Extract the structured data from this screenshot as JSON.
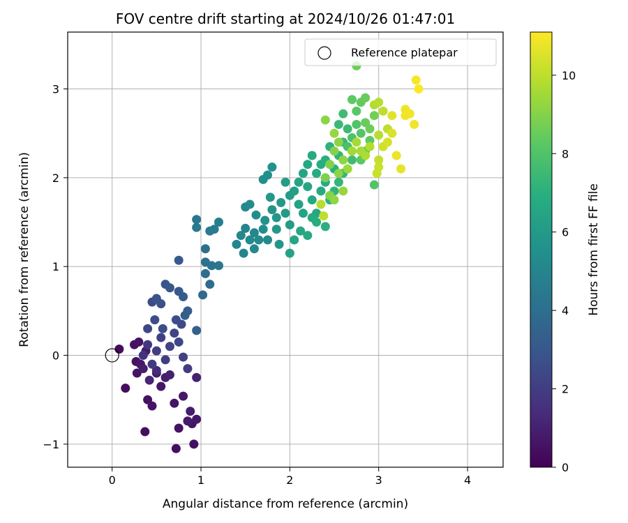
{
  "chart_data": {
    "type": "scatter",
    "title": "FOV centre drift starting at 2024/10/26 01:47:01",
    "xlabel": "Angular distance from reference (arcmin)",
    "ylabel": "Rotation from reference (arcmin)",
    "xlim": [
      -0.5,
      4.4
    ],
    "ylim": [
      -1.26,
      3.64
    ],
    "x_ticks": [
      0,
      1,
      2,
      3,
      4
    ],
    "y_ticks": [
      -1,
      0,
      1,
      2,
      3
    ],
    "x_tick_labels": [
      "0",
      "1",
      "2",
      "3",
      "4"
    ],
    "y_tick_labels": [
      "−1",
      "0",
      "1",
      "2",
      "3"
    ],
    "grid": true,
    "legend": {
      "location": "top-right",
      "entries": [
        "Reference platepar"
      ]
    },
    "reference_point": {
      "name": "Reference platepar",
      "x": 0,
      "y": 0
    },
    "colorbar": {
      "label": "Hours from first FF file",
      "colormap": "viridis",
      "range": [
        0,
        11.1
      ],
      "ticks": [
        0,
        2,
        4,
        6,
        8,
        10
      ],
      "tick_labels": [
        "0",
        "2",
        "4",
        "6",
        "8",
        "10"
      ]
    },
    "points_note": "approximate reading of the scatter; columns are [x arcmin, y arcmin, hours]",
    "points": [
      [
        0.08,
        0.07,
        0.3
      ],
      [
        0.15,
        -0.37,
        0.4
      ],
      [
        0.25,
        0.12,
        0.5
      ],
      [
        0.3,
        0.15,
        0.6
      ],
      [
        0.27,
        -0.07,
        0.5
      ],
      [
        0.32,
        -0.1,
        0.7
      ],
      [
        0.28,
        -0.2,
        0.6
      ],
      [
        0.38,
        0.05,
        0.8
      ],
      [
        0.35,
        -0.15,
        0.9
      ],
      [
        0.4,
        -0.5,
        0.5
      ],
      [
        0.45,
        -0.57,
        0.6
      ],
      [
        0.37,
        -0.86,
        0.4
      ],
      [
        0.5,
        -0.2,
        0.8
      ],
      [
        0.55,
        -0.35,
        0.7
      ],
      [
        0.6,
        -0.25,
        0.9
      ],
      [
        0.65,
        -0.22,
        1.0
      ],
      [
        0.7,
        -0.54,
        0.6
      ],
      [
        0.75,
        -0.82,
        0.5
      ],
      [
        0.72,
        -1.05,
        0.4
      ],
      [
        0.8,
        -0.46,
        0.7
      ],
      [
        0.85,
        -0.74,
        0.8
      ],
      [
        0.88,
        -0.63,
        0.9
      ],
      [
        0.9,
        -0.77,
        0.6
      ],
      [
        0.95,
        -0.72,
        0.7
      ],
      [
        0.92,
        -1.0,
        0.5
      ],
      [
        0.95,
        -0.25,
        1.0
      ],
      [
        0.42,
        -0.28,
        1.2
      ],
      [
        0.5,
        -0.17,
        1.3
      ],
      [
        0.35,
        0.0,
        1.6
      ],
      [
        0.4,
        0.12,
        1.8
      ],
      [
        0.45,
        -0.1,
        1.9
      ],
      [
        0.5,
        0.05,
        2.0
      ],
      [
        0.55,
        0.2,
        2.1
      ],
      [
        0.6,
        -0.05,
        2.0
      ],
      [
        0.65,
        0.1,
        2.2
      ],
      [
        0.7,
        0.25,
        2.3
      ],
      [
        0.75,
        0.15,
        2.4
      ],
      [
        0.8,
        -0.02,
        2.1
      ],
      [
        0.85,
        -0.15,
        2.0
      ],
      [
        0.78,
        0.35,
        2.5
      ],
      [
        0.72,
        0.4,
        2.6
      ],
      [
        0.4,
        0.3,
        2.4
      ],
      [
        0.48,
        0.4,
        2.6
      ],
      [
        0.55,
        0.58,
        2.7
      ],
      [
        0.45,
        0.6,
        2.5
      ],
      [
        0.5,
        0.64,
        2.8
      ],
      [
        0.6,
        0.8,
        2.9
      ],
      [
        0.65,
        0.76,
        3.0
      ],
      [
        0.75,
        0.72,
        3.1
      ],
      [
        0.8,
        0.66,
        3.2
      ],
      [
        0.85,
        0.5,
        3.3
      ],
      [
        0.82,
        0.45,
        3.3
      ],
      [
        0.75,
        1.07,
        3.1
      ],
      [
        0.95,
        0.28,
        3.4
      ],
      [
        0.57,
        0.3,
        2.6
      ],
      [
        0.95,
        1.53,
        4.3
      ],
      [
        0.95,
        1.44,
        4.4
      ],
      [
        1.05,
        1.2,
        4.0
      ],
      [
        1.1,
        1.4,
        4.5
      ],
      [
        1.05,
        1.05,
        4.1
      ],
      [
        1.12,
        1.01,
        4.2
      ],
      [
        1.05,
        0.92,
        4.0
      ],
      [
        1.2,
        1.01,
        4.4
      ],
      [
        1.1,
        0.8,
        3.9
      ],
      [
        1.02,
        0.68,
        3.8
      ],
      [
        1.15,
        1.42,
        4.6
      ],
      [
        1.2,
        1.5,
        4.7
      ],
      [
        1.4,
        1.25,
        5.0
      ],
      [
        1.45,
        1.35,
        5.1
      ],
      [
        1.5,
        1.43,
        5.0
      ],
      [
        1.55,
        1.3,
        5.2
      ],
      [
        1.6,
        1.38,
        5.1
      ],
      [
        1.48,
        1.15,
        5.0
      ],
      [
        1.6,
        1.2,
        5.2
      ],
      [
        1.65,
        1.3,
        5.3
      ],
      [
        1.7,
        1.42,
        5.4
      ],
      [
        1.75,
        1.3,
        5.3
      ],
      [
        1.5,
        1.67,
        5.2
      ],
      [
        1.55,
        1.7,
        5.3
      ],
      [
        1.62,
        1.58,
        5.4
      ],
      [
        1.7,
        1.98,
        5.5
      ],
      [
        1.75,
        2.03,
        5.5
      ],
      [
        1.8,
        2.12,
        5.6
      ],
      [
        1.72,
        1.52,
        5.6
      ],
      [
        1.8,
        1.64,
        5.7
      ],
      [
        1.85,
        1.55,
        5.8
      ],
      [
        1.9,
        1.72,
        5.9
      ],
      [
        1.85,
        1.42,
        5.9
      ],
      [
        1.88,
        1.25,
        5.8
      ],
      [
        1.95,
        1.6,
        6.0
      ],
      [
        2.0,
        1.8,
        6.1
      ],
      [
        2.0,
        1.47,
        6.1
      ],
      [
        2.0,
        1.15,
        6.3
      ],
      [
        1.95,
        1.95,
        6.1
      ],
      [
        1.78,
        1.78,
        5.9
      ],
      [
        2.05,
        1.85,
        6.2
      ],
      [
        2.1,
        1.7,
        6.3
      ],
      [
        2.15,
        1.6,
        6.4
      ],
      [
        2.2,
        1.9,
        6.5
      ],
      [
        2.25,
        1.75,
        6.6
      ],
      [
        2.3,
        1.6,
        6.5
      ],
      [
        2.35,
        1.85,
        6.7
      ],
      [
        2.4,
        1.95,
        6.8
      ],
      [
        2.1,
        1.95,
        6.4
      ],
      [
        2.15,
        2.05,
        6.5
      ],
      [
        2.2,
        2.15,
        6.6
      ],
      [
        2.25,
        2.25,
        6.7
      ],
      [
        2.3,
        2.05,
        6.8
      ],
      [
        2.35,
        2.15,
        6.9
      ],
      [
        2.4,
        2.2,
        7.0
      ],
      [
        2.45,
        2.35,
        7.1
      ],
      [
        2.5,
        2.1,
        7.0
      ],
      [
        2.55,
        2.25,
        7.2
      ],
      [
        2.3,
        1.5,
        6.9
      ],
      [
        2.4,
        1.45,
        7.0
      ],
      [
        2.45,
        1.75,
        7.1
      ],
      [
        2.5,
        1.85,
        7.2
      ],
      [
        2.55,
        1.95,
        7.3
      ],
      [
        2.6,
        2.05,
        7.3
      ],
      [
        2.12,
        1.4,
        6.6
      ],
      [
        2.05,
        1.3,
        6.5
      ],
      [
        2.2,
        1.35,
        6.7
      ],
      [
        2.25,
        1.55,
        6.8
      ],
      [
        2.6,
        2.4,
        7.4
      ],
      [
        2.65,
        2.55,
        7.5
      ],
      [
        2.7,
        2.2,
        7.6
      ],
      [
        2.55,
        2.6,
        7.5
      ],
      [
        2.6,
        2.72,
        7.6
      ],
      [
        2.65,
        2.35,
        7.8
      ],
      [
        2.7,
        2.45,
        7.9
      ],
      [
        2.75,
        2.6,
        8.0
      ],
      [
        2.8,
        2.5,
        8.1
      ],
      [
        2.85,
        2.3,
        8.2
      ],
      [
        2.9,
        2.42,
        8.3
      ],
      [
        2.75,
        2.75,
        8.2
      ],
      [
        2.8,
        2.85,
        8.4
      ],
      [
        2.85,
        2.9,
        8.5
      ],
      [
        2.7,
        2.88,
        8.3
      ],
      [
        2.9,
        2.55,
        8.6
      ],
      [
        2.95,
        2.7,
        8.7
      ],
      [
        2.95,
        1.92,
        8.0
      ],
      [
        2.75,
        3.26,
        8.6
      ],
      [
        2.85,
        2.62,
        8.5
      ],
      [
        2.8,
        2.2,
        8.2
      ],
      [
        2.4,
        2.0,
        8.8
      ],
      [
        2.45,
        2.15,
        8.9
      ],
      [
        2.5,
        2.3,
        9.0
      ],
      [
        2.55,
        2.4,
        9.1
      ],
      [
        2.6,
        2.2,
        9.2
      ],
      [
        2.4,
        2.65,
        9.1
      ],
      [
        2.45,
        1.8,
        9.0
      ],
      [
        2.5,
        1.75,
        9.2
      ],
      [
        2.6,
        1.85,
        9.3
      ],
      [
        2.5,
        2.5,
        9.3
      ],
      [
        2.55,
        2.05,
        9.1
      ],
      [
        2.65,
        2.1,
        9.4
      ],
      [
        2.7,
        2.3,
        9.5
      ],
      [
        2.75,
        2.4,
        9.6
      ],
      [
        2.8,
        2.3,
        9.6
      ],
      [
        2.85,
        2.25,
        9.7
      ],
      [
        2.9,
        2.35,
        9.8
      ],
      [
        3.0,
        2.48,
        9.9
      ],
      [
        2.95,
        2.82,
        9.8
      ],
      [
        3.0,
        2.85,
        9.9
      ],
      [
        3.05,
        2.75,
        10.0
      ],
      [
        3.1,
        2.55,
        10.0
      ],
      [
        3.0,
        2.2,
        10.1
      ],
      [
        3.0,
        2.12,
        10.2
      ],
      [
        3.05,
        2.35,
        10.3
      ],
      [
        3.1,
        2.4,
        10.4
      ],
      [
        3.15,
        2.5,
        10.5
      ],
      [
        2.98,
        2.05,
        10.2
      ],
      [
        2.35,
        1.7,
        9.9
      ],
      [
        2.38,
        1.57,
        10.0
      ],
      [
        3.15,
        2.7,
        10.6
      ],
      [
        3.2,
        2.25,
        10.8
      ],
      [
        3.25,
        2.1,
        10.7
      ],
      [
        3.3,
        2.77,
        10.8
      ],
      [
        3.35,
        2.72,
        10.9
      ],
      [
        3.4,
        2.6,
        10.9
      ],
      [
        3.42,
        3.1,
        11.0
      ],
      [
        3.45,
        3.0,
        11.1
      ],
      [
        3.3,
        2.7,
        10.9
      ]
    ]
  }
}
